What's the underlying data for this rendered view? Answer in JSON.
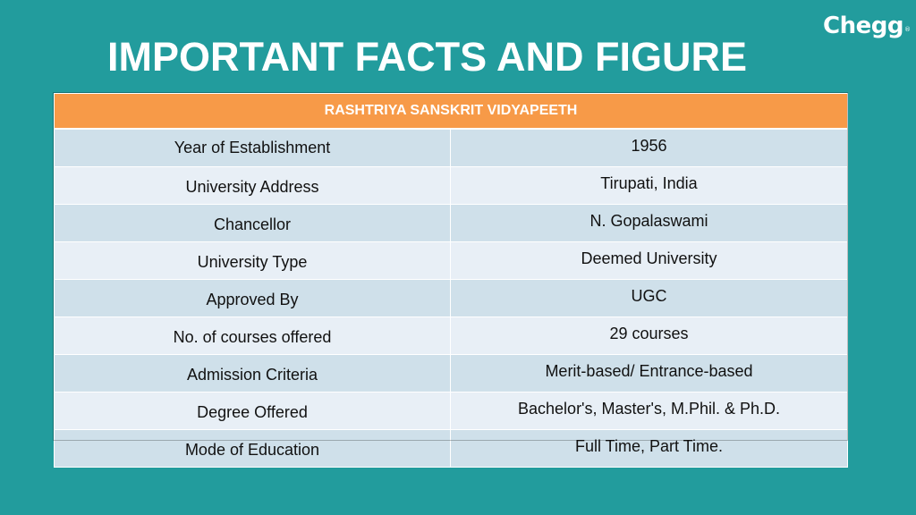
{
  "logo": {
    "text": "Chegg",
    "mark": "®"
  },
  "title": "IMPORTANT FACTS AND FIGURE",
  "table": {
    "header": "RASHTRIYA SANSKRIT VIDYAPEETH",
    "rows": [
      {
        "label": "Year of Establishment",
        "value": "1956"
      },
      {
        "label": "University Address",
        "value": "Tirupati, India"
      },
      {
        "label": "Chancellor",
        "value": "N. Gopalaswami"
      },
      {
        "label": "University Type",
        "value": "Deemed University"
      },
      {
        "label": "Approved By",
        "value": "UGC"
      },
      {
        "label": "No. of courses offered",
        "value": "29 courses"
      },
      {
        "label": "Admission Criteria",
        "value": "Merit-based/ Entrance-based"
      },
      {
        "label": "Degree Offered",
        "value": "Bachelor's, Master's, M.Phil. & Ph.D."
      },
      {
        "label": "Mode of Education",
        "value": "Full Time, Part Time."
      }
    ]
  },
  "colors": {
    "background": "#229c9d",
    "header": "#f79a48",
    "row_odd": "#cfe0ea",
    "row_even": "#e8eff6"
  }
}
